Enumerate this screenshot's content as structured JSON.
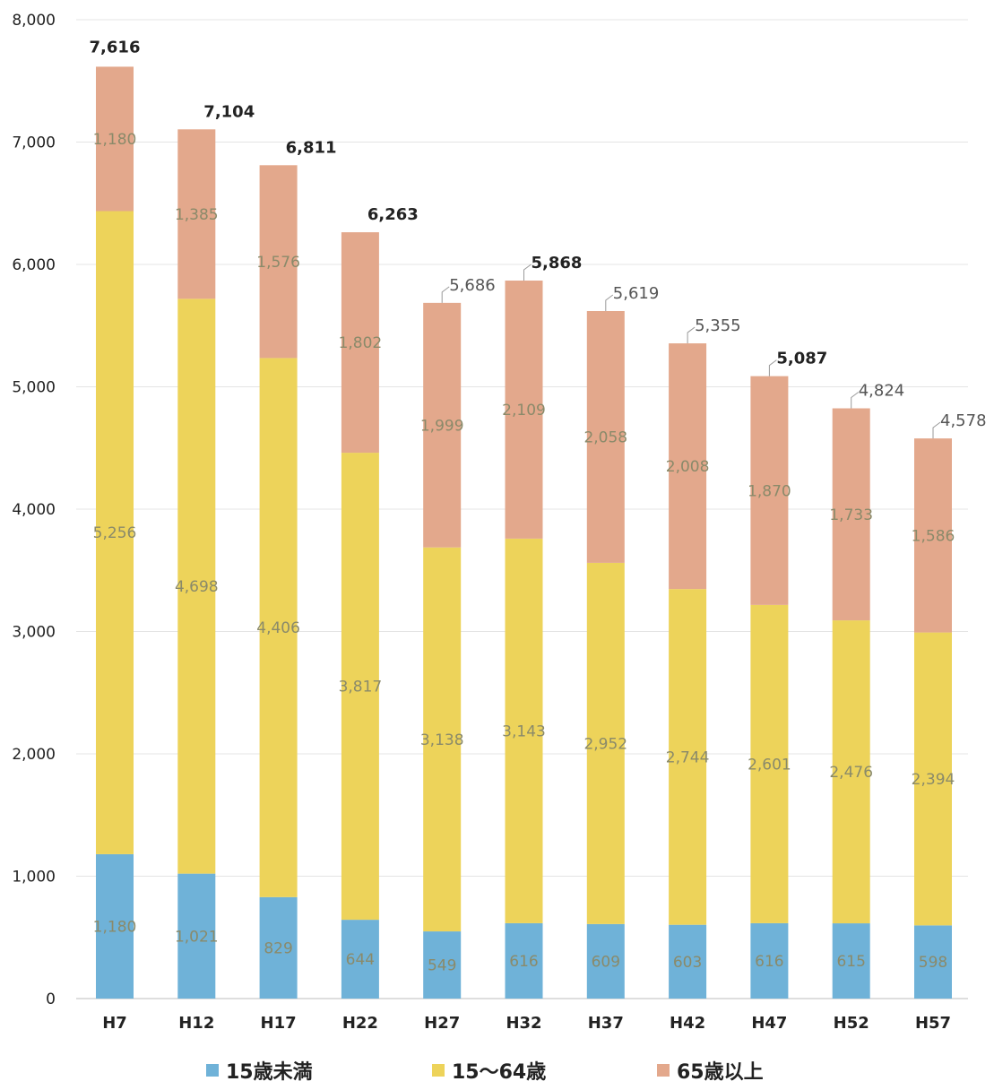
{
  "chart_data": {
    "type": "bar",
    "stacked": true,
    "categories": [
      "H7",
      "H12",
      "H17",
      "H22",
      "H27",
      "H32",
      "H37",
      "H42",
      "H47",
      "H52",
      "H57"
    ],
    "series": [
      {
        "name": "15歳未満",
        "color": "#6fb2d8",
        "values": [
          1180,
          1021,
          829,
          644,
          549,
          616,
          609,
          603,
          616,
          615,
          598
        ]
      },
      {
        "name": "15～64歳",
        "color": "#edd35a",
        "values": [
          5256,
          4698,
          4406,
          3817,
          3138,
          3143,
          2952,
          2744,
          2601,
          2476,
          2394
        ]
      },
      {
        "name": "65歳以上",
        "color": "#e3a88c",
        "values": [
          1180,
          1385,
          1576,
          1802,
          1999,
          2109,
          2058,
          2008,
          1870,
          1733,
          1586
        ]
      }
    ],
    "totals": [
      7616,
      7104,
      6811,
      6263,
      5686,
      5868,
      5619,
      5355,
      5087,
      4824,
      4578
    ],
    "total_labels": [
      "7,616",
      "7,104",
      "6,811",
      "6,263",
      "5,686",
      "5,868",
      "5,619",
      "5,355",
      "5,087",
      "4,824",
      "4,578"
    ],
    "segment_labels": [
      [
        "1,180",
        "1,021",
        "829",
        "644",
        "549",
        "616",
        "609",
        "603",
        "616",
        "615",
        "598"
      ],
      [
        "5,256",
        "4,698",
        "4,406",
        "3,817",
        "3,138",
        "3,143",
        "2,952",
        "2,744",
        "2,601",
        "2,476",
        "2,394"
      ],
      [
        "1,180",
        "1,385",
        "1,576",
        "1,802",
        "1,999",
        "2,109",
        "2,058",
        "2,008",
        "1,870",
        "1,733",
        "1,586"
      ]
    ],
    "ylim": [
      0,
      8000
    ],
    "yticks": [
      "0",
      "1,000",
      "2,000",
      "3,000",
      "4,000",
      "5,000",
      "6,000",
      "7,000",
      "8,000"
    ],
    "grid": true,
    "legend_position": "bottom"
  },
  "legend": {
    "item1": "15歳未満",
    "item2": "15～64歳",
    "item3": "65歳以上",
    "color1": "#6fb2d8",
    "color2": "#edd35a",
    "color3": "#e3a88c"
  }
}
